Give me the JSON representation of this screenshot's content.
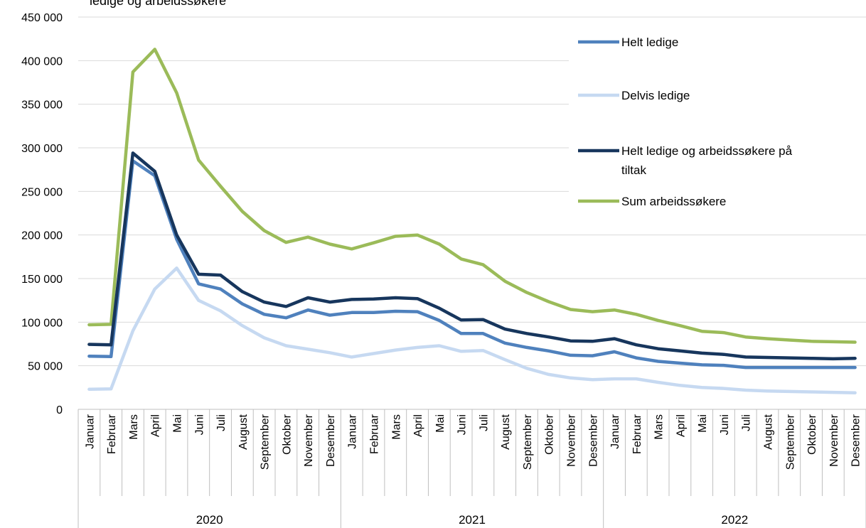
{
  "chart_data": {
    "type": "line",
    "title": "",
    "title_fragment": "ledige og arbeidssøkere",
    "ylim": [
      0,
      450000
    ],
    "yticks": [
      "0",
      "50 000",
      "100 000",
      "150 000",
      "200 000",
      "250 000",
      "300 000",
      "350 000",
      "400 000",
      "450 000"
    ],
    "months": [
      "Januar",
      "Februar",
      "Mars",
      "April",
      "Mai",
      "Juni",
      "Juli",
      "August",
      "September",
      "Oktober",
      "November",
      "Desember"
    ],
    "years": [
      "2020",
      "2021",
      "2022"
    ],
    "grid": true,
    "legend_position": "top-right",
    "series": [
      {
        "name": "Helt ledige",
        "color": "#4F81BD",
        "values": [
          61000,
          60500,
          285000,
          268000,
          195000,
          144000,
          138000,
          121000,
          109000,
          105000,
          114000,
          108000,
          111000,
          111000,
          112500,
          112000,
          102000,
          87000,
          87000,
          76000,
          71000,
          67000,
          62000,
          61500,
          66000,
          59000,
          55000,
          53000,
          51000,
          50500,
          48000,
          48000,
          48000,
          48000,
          48000,
          48000
        ]
      },
      {
        "name": "Delvis ledige",
        "color": "#C6D9F1",
        "values": [
          23000,
          23500,
          90000,
          138000,
          162000,
          125000,
          113000,
          96000,
          82000,
          73000,
          69000,
          65000,
          60000,
          64000,
          68000,
          71000,
          73000,
          66500,
          67500,
          57000,
          47000,
          40000,
          36000,
          34000,
          35000,
          35000,
          31000,
          27500,
          25000,
          24000,
          22000,
          21000,
          20500,
          20000,
          19500,
          19000
        ]
      },
      {
        "name": "Helt ledige og arbeidssøkere på tiltak",
        "color": "#17365D",
        "values": [
          74500,
          74000,
          294000,
          273000,
          200000,
          155000,
          154000,
          135000,
          123000,
          118000,
          128000,
          123000,
          126000,
          126500,
          128000,
          127000,
          116000,
          102500,
          103000,
          92000,
          87000,
          83000,
          78500,
          78000,
          81000,
          74000,
          69500,
          67000,
          64500,
          63000,
          60000,
          59500,
          59000,
          58500,
          58000,
          58500
        ]
      },
      {
        "name": "Sum arbeidssøkere",
        "color": "#9BBB59",
        "values": [
          97000,
          97500,
          387000,
          413000,
          363000,
          286000,
          256000,
          227000,
          205000,
          191500,
          197500,
          189500,
          184000,
          191000,
          198500,
          200000,
          189500,
          172500,
          166000,
          147000,
          134000,
          123500,
          114500,
          112000,
          114000,
          109000,
          102000,
          96000,
          89500,
          88000,
          83000,
          81000,
          79500,
          78000,
          77500,
          77000
        ]
      }
    ]
  }
}
